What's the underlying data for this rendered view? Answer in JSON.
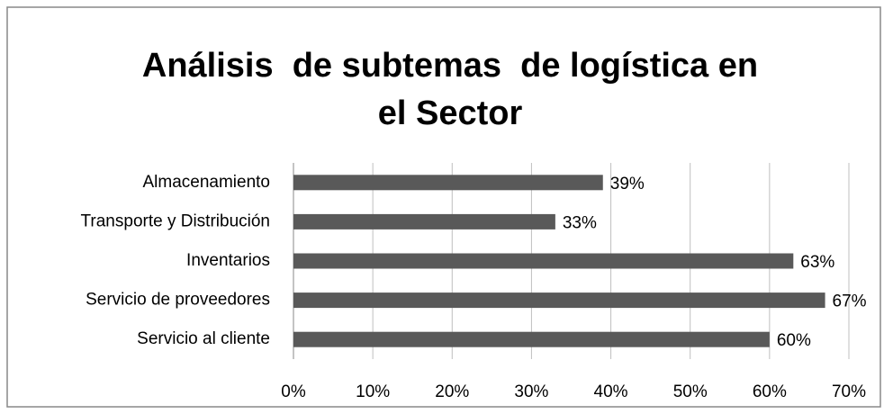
{
  "chart_data": {
    "type": "barh",
    "title": [
      "Análisis  de subtemas  de logística en",
      "el Sector"
    ],
    "categories": [
      "Almacenamiento",
      "Transporte y Distribución",
      "Inventarios",
      "Servicio de proveedores",
      "Servicio al cliente"
    ],
    "values": [
      39,
      33,
      63,
      67,
      60
    ],
    "value_labels": [
      "39%",
      "33%",
      "63%",
      "67%",
      "60%"
    ],
    "color": "#595959",
    "xlim": [
      0,
      70
    ],
    "xticks": [
      {
        "value": 0,
        "label": "0%"
      },
      {
        "value": 10,
        "label": "10%"
      },
      {
        "value": 20,
        "label": "20%"
      },
      {
        "value": 30,
        "label": "30%"
      },
      {
        "value": 40,
        "label": "40%"
      },
      {
        "value": 50,
        "label": "50%"
      },
      {
        "value": 60,
        "label": "60%"
      },
      {
        "value": 70,
        "label": "70%"
      }
    ],
    "grid": true
  }
}
